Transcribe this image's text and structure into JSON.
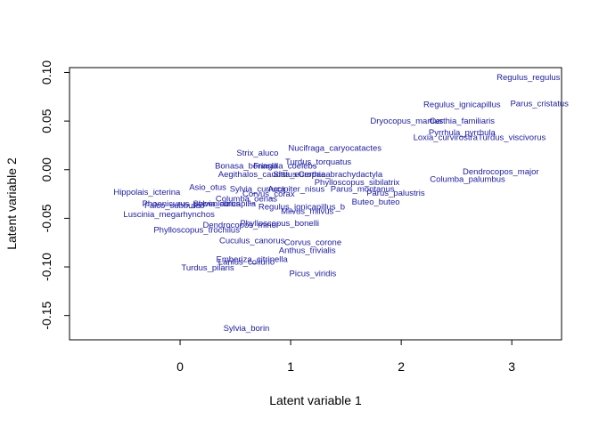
{
  "chart_data": {
    "type": "scatter",
    "title": "",
    "xlabel": "Latent variable  1",
    "ylabel": "Latent variable  2",
    "xlim": [
      -1.0,
      3.45
    ],
    "ylim": [
      -0.175,
      0.105
    ],
    "x_ticks": [
      "0",
      "1",
      "2",
      "3"
    ],
    "y_ticks": [
      "-0.15",
      "-0.10",
      "-0.05",
      "0.00",
      "0.05",
      "0.10"
    ],
    "grid": false,
    "label_color": "#1a1aa6",
    "points": [
      {
        "label": "Regulus_regulus",
        "x": 3.15,
        "y": 0.095
      },
      {
        "label": "Parus_cristatus",
        "x": 3.25,
        "y": 0.068
      },
      {
        "label": "Regulus_ignicapillus",
        "x": 2.55,
        "y": 0.067
      },
      {
        "label": "Dryocopus_martius",
        "x": 2.05,
        "y": 0.05
      },
      {
        "label": "Certhia_familiaris",
        "x": 2.55,
        "y": 0.05
      },
      {
        "label": "Pyrrhula_pyrrhula",
        "x": 2.55,
        "y": 0.038
      },
      {
        "label": "Loxia_curvirostra",
        "x": 2.4,
        "y": 0.033
      },
      {
        "label": "Turdus_viscivorus",
        "x": 3.0,
        "y": 0.033
      },
      {
        "label": "Nucifraga_caryocatactes",
        "x": 1.4,
        "y": 0.022
      },
      {
        "label": "Strix_aluco",
        "x": 0.7,
        "y": 0.017
      },
      {
        "label": "Turdus_torquatus",
        "x": 1.25,
        "y": 0.008
      },
      {
        "label": "Bonasa_bonasia",
        "x": 0.6,
        "y": 0.004
      },
      {
        "label": "Fringilla_coelebs",
        "x": 0.95,
        "y": 0.004
      },
      {
        "label": "Dendrocopos_major",
        "x": 2.9,
        "y": -0.002
      },
      {
        "label": "Aegithalos_caudatus",
        "x": 0.7,
        "y": -0.005
      },
      {
        "label": "Sitta_europaea",
        "x": 1.1,
        "y": -0.005
      },
      {
        "label": "Certhia_brachydactyla",
        "x": 1.45,
        "y": -0.005
      },
      {
        "label": "Columba_palumbus",
        "x": 2.6,
        "y": -0.01
      },
      {
        "label": "Phylloscopus_sibilatrix",
        "x": 1.6,
        "y": -0.013
      },
      {
        "label": "Parus_palustris",
        "x": 1.95,
        "y": -0.024
      },
      {
        "label": "Hippolais_icterina",
        "x": -0.3,
        "y": -0.023
      },
      {
        "label": "Asio_otus",
        "x": 0.25,
        "y": -0.018
      },
      {
        "label": "Sylvia_curruca",
        "x": 0.7,
        "y": -0.02
      },
      {
        "label": "Accipiter_nisus",
        "x": 1.05,
        "y": -0.02
      },
      {
        "label": "Parus_montanus",
        "x": 1.65,
        "y": -0.02
      },
      {
        "label": "Corvus_corax",
        "x": 0.8,
        "y": -0.025
      },
      {
        "label": "Columba_oenas",
        "x": 0.6,
        "y": -0.03
      },
      {
        "label": "Falco_subbuteo",
        "x": -0.05,
        "y": -0.037
      },
      {
        "label": "Phoenicurus_phoenicurus",
        "x": 0.1,
        "y": -0.035
      },
      {
        "label": "Sylvia_atricapilla",
        "x": 0.4,
        "y": -0.035
      },
      {
        "label": "Regulus_ignicapillus_b",
        "x": 1.1,
        "y": -0.038
      },
      {
        "label": "Buteo_buteo",
        "x": 1.77,
        "y": -0.033
      },
      {
        "label": "Milvus_milvus",
        "x": 1.15,
        "y": -0.043
      },
      {
        "label": "Luscinia_megarhynchos",
        "x": -0.1,
        "y": -0.046
      },
      {
        "label": "Dendrocopos_minor",
        "x": 0.55,
        "y": -0.057
      },
      {
        "label": "Phylloscopus_bonelli",
        "x": 0.9,
        "y": -0.055
      },
      {
        "label": "Phylloscopus_trochilus",
        "x": 0.15,
        "y": -0.062
      },
      {
        "label": "Cuculus_canorus",
        "x": 0.65,
        "y": -0.073
      },
      {
        "label": "Corvus_corone",
        "x": 1.2,
        "y": -0.075
      },
      {
        "label": "Anthus_trivialis",
        "x": 1.15,
        "y": -0.083
      },
      {
        "label": "Emberiza_citrinella",
        "x": 0.65,
        "y": -0.092
      },
      {
        "label": "Lanius_collurio",
        "x": 0.6,
        "y": -0.095
      },
      {
        "label": "Turdus_pilaris",
        "x": 0.25,
        "y": -0.101
      },
      {
        "label": "Picus_viridis",
        "x": 1.2,
        "y": -0.107
      },
      {
        "label": "Sylvia_borin",
        "x": 0.6,
        "y": -0.163
      }
    ]
  }
}
